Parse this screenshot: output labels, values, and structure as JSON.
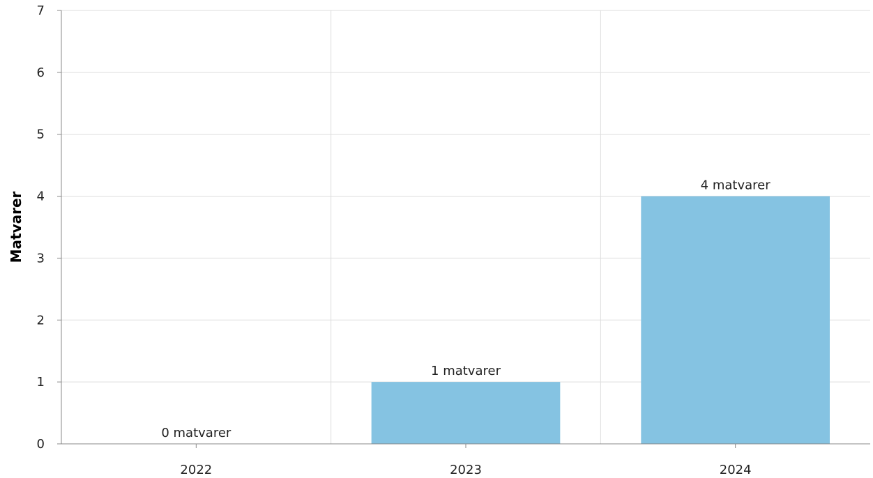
{
  "chart_data": {
    "type": "bar",
    "categories": [
      "2022",
      "2023",
      "2024"
    ],
    "values": [
      0,
      1,
      4
    ],
    "data_labels": [
      "0 matvarer",
      "1 matvarer",
      "4 matvarer"
    ],
    "ylabel": "Matvarer",
    "xlabel": "",
    "ylim": [
      0,
      7
    ],
    "yticks": [
      "0",
      "1",
      "2",
      "3",
      "4",
      "5",
      "6",
      "7"
    ],
    "grid": true,
    "bar_color": "#85c3e2",
    "grid_color": "#dddddd",
    "axis_color": "#888888"
  }
}
